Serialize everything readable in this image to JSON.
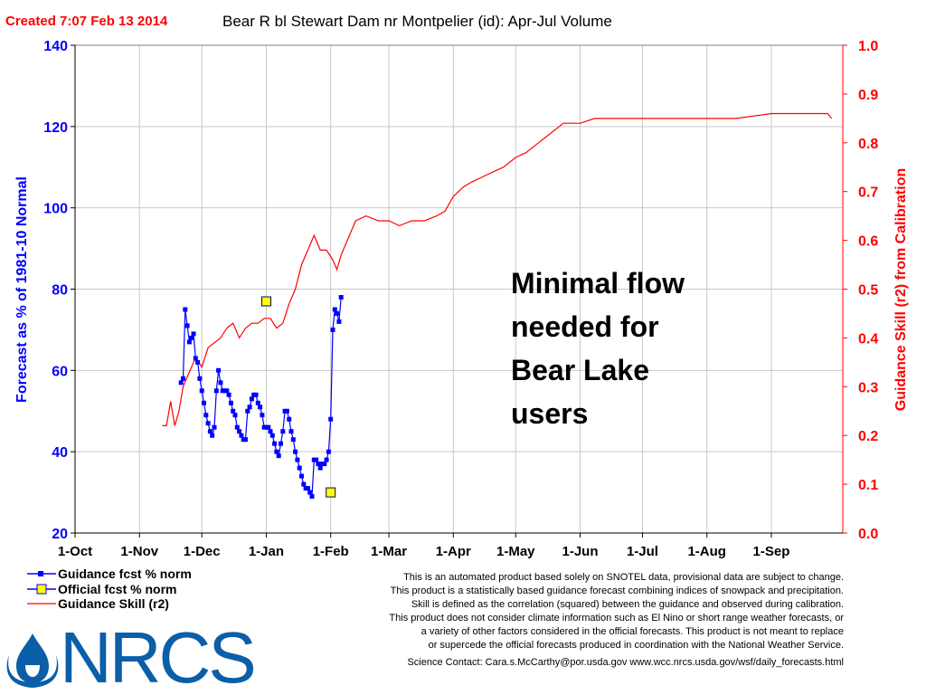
{
  "header": {
    "created": "Created 7:07 Feb 13 2014",
    "title": "Bear R bl Stewart Dam nr Montpelier (id): Apr-Jul Volume"
  },
  "colors": {
    "guidance": "#0000ff",
    "official_fill": "#ffff00",
    "skill": "#ff0000",
    "created": "#ff0000",
    "title": "#000000",
    "grid": "#c8c8c8",
    "logo": "#0b5ea8"
  },
  "annotation": {
    "lines": [
      "Minimal flow",
      "needed for",
      "Bear Lake",
      "users"
    ]
  },
  "legend": {
    "guidance": "Guidance fcst  % norm",
    "official": "Official fcst  %  norm",
    "skill": "Guidance Skill (r2)"
  },
  "disclaimer": [
    "This is an automated product based solely on SNOTEL  data, provisional data are subject to change.",
    "This product is a statistically based guidance forecast combining indices of snowpack and precipitation.",
    "Skill is defined as the correlation (squared) between the guidance and observed during calibration.",
    "This product does not consider climate information such as El  Nino or short range weather forecasts, or",
    "a variety of other factors considered in the official forecasts. This product is not meant to replace",
    "or supercede the official forecasts produced in coordination with the National Weather Service.",
    "Science Contact: Cara.s.McCarthy@por.usda.gov www.wcc.nrcs.usda.gov/wsf/daily_forecasts.html"
  ],
  "logo": {
    "text": "NRCS"
  },
  "chart_data": {
    "type": "line",
    "xlabel": "",
    "ylabel": "Forecast as % of 1981-10 Normal",
    "y2label": "Guidance Skill (r2) from Calibration",
    "categories": [
      "1-Oct",
      "1-Nov",
      "1-Dec",
      "1-Jan",
      "1-Feb",
      "1-Mar",
      "1-Apr",
      "1-May",
      "1-Jun",
      "1-Jul",
      "1-Aug",
      "1-Sep"
    ],
    "ylim": [
      20,
      140
    ],
    "yticks": [
      20,
      40,
      60,
      80,
      100,
      120,
      140
    ],
    "y2lim": [
      0.0,
      1.0
    ],
    "y2ticks": [
      "0.0",
      "0.1",
      "0.2",
      "0.3",
      "0.4",
      "0.5",
      "0.6",
      "0.7",
      "0.8",
      "0.9",
      "1.0"
    ],
    "grid": true,
    "legend_position": "bottom-left",
    "series": [
      {
        "name": "Guidance fcst  % norm",
        "axis": "left",
        "points": [
          [
            "2013-11-21",
            57
          ],
          [
            "2013-11-22",
            58
          ],
          [
            "2013-11-23",
            75
          ],
          [
            "2013-11-24",
            71
          ],
          [
            "2013-11-25",
            67
          ],
          [
            "2013-11-26",
            68
          ],
          [
            "2013-11-27",
            69
          ],
          [
            "2013-11-28",
            63
          ],
          [
            "2013-11-29",
            62
          ],
          [
            "2013-11-30",
            58
          ],
          [
            "2013-12-01",
            55
          ],
          [
            "2013-12-02",
            52
          ],
          [
            "2013-12-03",
            49
          ],
          [
            "2013-12-04",
            47
          ],
          [
            "2013-12-05",
            45
          ],
          [
            "2013-12-06",
            44
          ],
          [
            "2013-12-07",
            46
          ],
          [
            "2013-12-08",
            55
          ],
          [
            "2013-12-09",
            60
          ],
          [
            "2013-12-10",
            57
          ],
          [
            "2013-12-11",
            55
          ],
          [
            "2013-12-12",
            55
          ],
          [
            "2013-12-13",
            55
          ],
          [
            "2013-12-14",
            54
          ],
          [
            "2013-12-15",
            52
          ],
          [
            "2013-12-16",
            50
          ],
          [
            "2013-12-17",
            49
          ],
          [
            "2013-12-18",
            46
          ],
          [
            "2013-12-19",
            45
          ],
          [
            "2013-12-20",
            44
          ],
          [
            "2013-12-21",
            43
          ],
          [
            "2013-12-22",
            43
          ],
          [
            "2013-12-23",
            50
          ],
          [
            "2013-12-24",
            51
          ],
          [
            "2013-12-25",
            53
          ],
          [
            "2013-12-26",
            54
          ],
          [
            "2013-12-27",
            54
          ],
          [
            "2013-12-28",
            52
          ],
          [
            "2013-12-29",
            51
          ],
          [
            "2013-12-30",
            49
          ],
          [
            "2013-12-31",
            46
          ],
          [
            "2014-01-01",
            46
          ],
          [
            "2014-01-02",
            46
          ],
          [
            "2014-01-03",
            45
          ],
          [
            "2014-01-04",
            44
          ],
          [
            "2014-01-05",
            42
          ],
          [
            "2014-01-06",
            40
          ],
          [
            "2014-01-07",
            39
          ],
          [
            "2014-01-08",
            42
          ],
          [
            "2014-01-09",
            45
          ],
          [
            "2014-01-10",
            50
          ],
          [
            "2014-01-11",
            50
          ],
          [
            "2014-01-12",
            48
          ],
          [
            "2014-01-13",
            45
          ],
          [
            "2014-01-14",
            43
          ],
          [
            "2014-01-15",
            40
          ],
          [
            "2014-01-16",
            38
          ],
          [
            "2014-01-17",
            36
          ],
          [
            "2014-01-18",
            34
          ],
          [
            "2014-01-19",
            32
          ],
          [
            "2014-01-20",
            31
          ],
          [
            "2014-01-21",
            31
          ],
          [
            "2014-01-22",
            30
          ],
          [
            "2014-01-23",
            29
          ],
          [
            "2014-01-24",
            38
          ],
          [
            "2014-01-25",
            38
          ],
          [
            "2014-01-26",
            37
          ],
          [
            "2014-01-27",
            36
          ],
          [
            "2014-01-28",
            37
          ],
          [
            "2014-01-29",
            37
          ],
          [
            "2014-01-30",
            38
          ],
          [
            "2014-01-31",
            40
          ],
          [
            "2014-02-01",
            48
          ],
          [
            "2014-02-02",
            70
          ],
          [
            "2014-02-03",
            75
          ],
          [
            "2014-02-04",
            74
          ],
          [
            "2014-02-05",
            72
          ],
          [
            "2014-02-06",
            78
          ]
        ]
      },
      {
        "name": "Official fcst  %  norm",
        "axis": "left",
        "points": [
          [
            "2014-01-01",
            77
          ],
          [
            "2014-02-01",
            30
          ]
        ]
      },
      {
        "name": "Guidance Skill (r2)",
        "axis": "right",
        "points": [
          [
            "2013-11-12",
            0.22
          ],
          [
            "2013-11-14",
            0.22
          ],
          [
            "2013-11-16",
            0.27
          ],
          [
            "2013-11-18",
            0.22
          ],
          [
            "2013-11-20",
            0.25
          ],
          [
            "2013-11-22",
            0.3
          ],
          [
            "2013-11-25",
            0.33
          ],
          [
            "2013-11-28",
            0.36
          ],
          [
            "2013-12-01",
            0.34
          ],
          [
            "2013-12-04",
            0.38
          ],
          [
            "2013-12-07",
            0.39
          ],
          [
            "2013-12-10",
            0.4
          ],
          [
            "2013-12-13",
            0.42
          ],
          [
            "2013-12-16",
            0.43
          ],
          [
            "2013-12-19",
            0.4
          ],
          [
            "2013-12-22",
            0.42
          ],
          [
            "2013-12-25",
            0.43
          ],
          [
            "2013-12-28",
            0.43
          ],
          [
            "2013-12-31",
            0.44
          ],
          [
            "2014-01-03",
            0.44
          ],
          [
            "2014-01-06",
            0.42
          ],
          [
            "2014-01-09",
            0.43
          ],
          [
            "2014-01-12",
            0.47
          ],
          [
            "2014-01-15",
            0.5
          ],
          [
            "2014-01-18",
            0.55
          ],
          [
            "2014-01-21",
            0.58
          ],
          [
            "2014-01-24",
            0.61
          ],
          [
            "2014-01-27",
            0.58
          ],
          [
            "2014-01-30",
            0.58
          ],
          [
            "2014-02-02",
            0.56
          ],
          [
            "2014-02-04",
            0.54
          ],
          [
            "2014-02-06",
            0.57
          ],
          [
            "2014-02-09",
            0.6
          ],
          [
            "2014-02-13",
            0.64
          ],
          [
            "2014-02-18",
            0.65
          ],
          [
            "2014-02-24",
            0.64
          ],
          [
            "2014-03-01",
            0.64
          ],
          [
            "2014-03-06",
            0.63
          ],
          [
            "2014-03-12",
            0.64
          ],
          [
            "2014-03-18",
            0.64
          ],
          [
            "2014-03-24",
            0.65
          ],
          [
            "2014-03-28",
            0.66
          ],
          [
            "2014-04-01",
            0.69
          ],
          [
            "2014-04-06",
            0.71
          ],
          [
            "2014-04-10",
            0.72
          ],
          [
            "2014-04-15",
            0.73
          ],
          [
            "2014-04-20",
            0.74
          ],
          [
            "2014-04-25",
            0.75
          ],
          [
            "2014-05-01",
            0.77
          ],
          [
            "2014-05-06",
            0.78
          ],
          [
            "2014-05-12",
            0.8
          ],
          [
            "2014-05-18",
            0.82
          ],
          [
            "2014-05-24",
            0.84
          ],
          [
            "2014-06-01",
            0.84
          ],
          [
            "2014-06-08",
            0.85
          ],
          [
            "2014-06-15",
            0.85
          ],
          [
            "2014-06-22",
            0.85
          ],
          [
            "2014-07-01",
            0.85
          ],
          [
            "2014-07-15",
            0.85
          ],
          [
            "2014-08-01",
            0.85
          ],
          [
            "2014-08-15",
            0.85
          ],
          [
            "2014-09-01",
            0.86
          ],
          [
            "2014-09-15",
            0.86
          ],
          [
            "2014-09-28",
            0.86
          ],
          [
            "2014-09-30",
            0.85
          ]
        ]
      }
    ]
  }
}
